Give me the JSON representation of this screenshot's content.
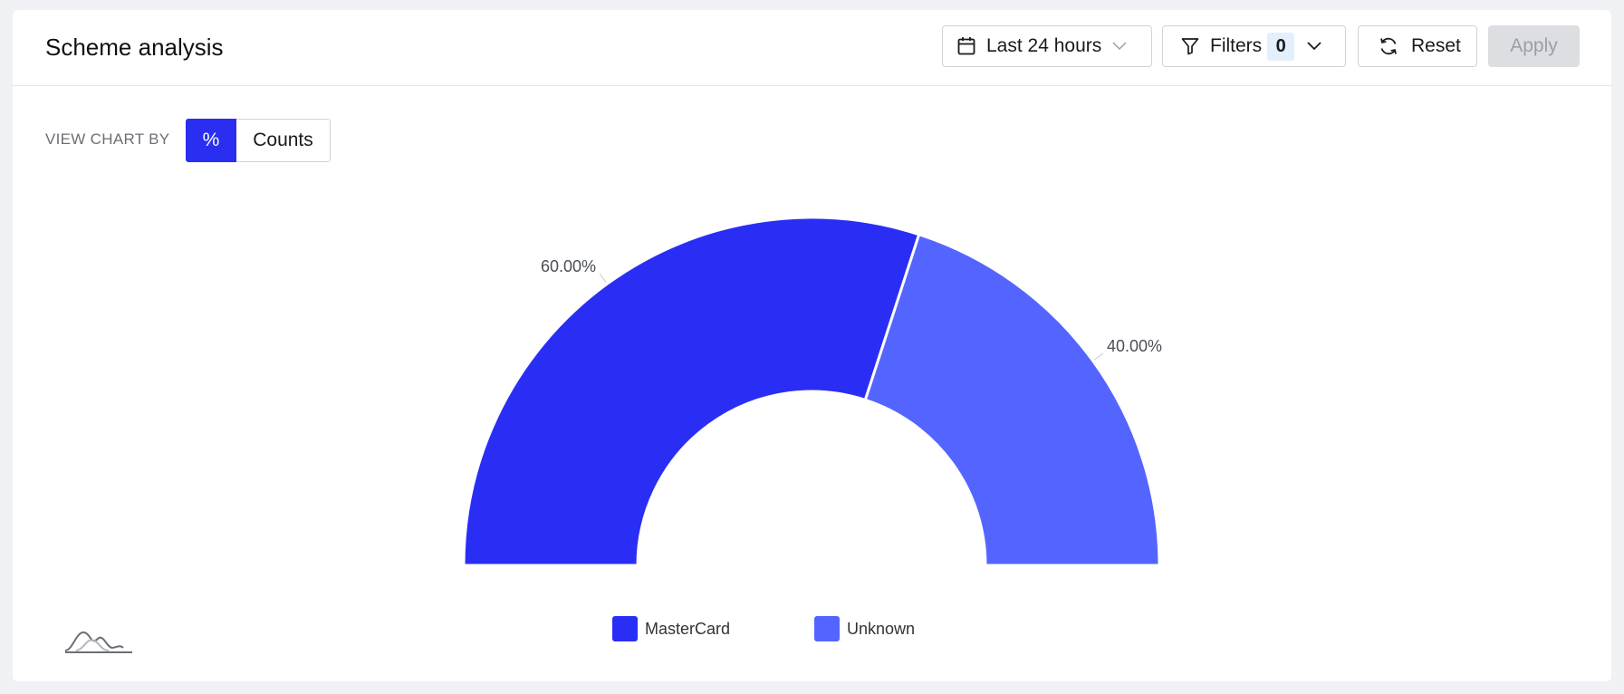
{
  "header": {
    "title": "Scheme analysis",
    "date_range_label": "Last 24 hours",
    "filters_label": "Filters",
    "filters_count": "0",
    "reset_label": "Reset",
    "apply_label": "Apply"
  },
  "view_chart_by": {
    "label": "VIEW CHART BY",
    "options": [
      "%",
      "Counts"
    ],
    "selected": "%"
  },
  "colors": {
    "accent": "#2a2ef0",
    "series_mastercard": "#2a2ef5",
    "series_unknown": "#5465ff"
  },
  "chart_data": {
    "type": "pie",
    "variant": "half-donut",
    "title": "",
    "series": [
      {
        "name": "MasterCard",
        "value": 60.0,
        "label": "60.00%"
      },
      {
        "name": "Unknown",
        "value": 40.0,
        "label": "40.00%"
      }
    ],
    "legend_position": "bottom"
  }
}
